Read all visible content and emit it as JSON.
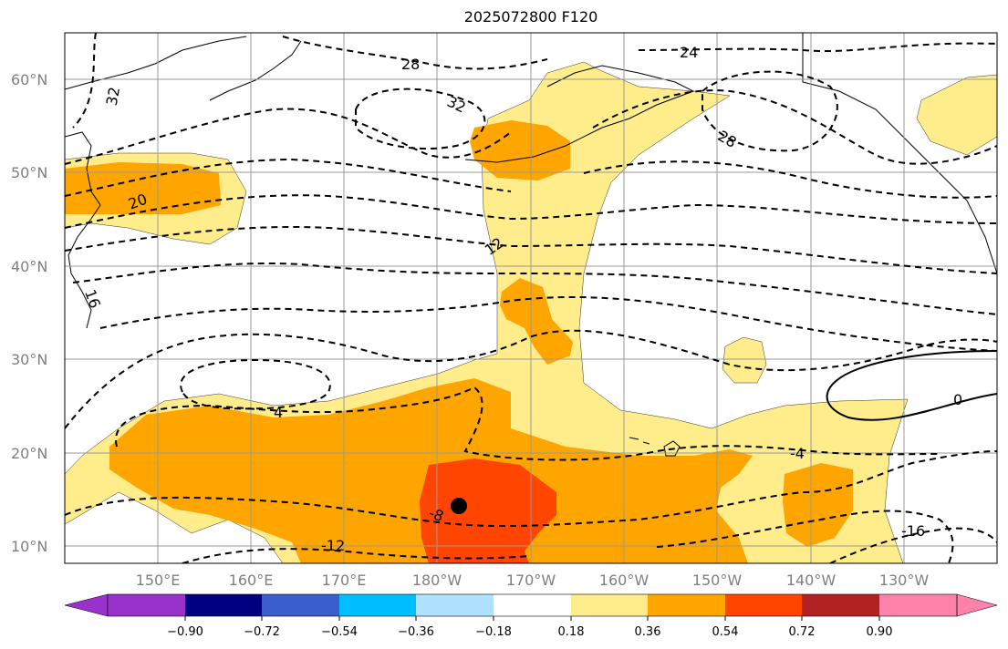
{
  "title": "2025072800 F120",
  "lat_labels": [
    "60°N",
    "50°N",
    "40°N",
    "30°N",
    "20°N",
    "10°N"
  ],
  "lon_labels": [
    "150°E",
    "160°E",
    "170°E",
    "180°W",
    "170°W",
    "160°W",
    "150°W",
    "140°W",
    "130°W"
  ],
  "contour_labels": [
    "28",
    "24",
    "32",
    "32",
    "28",
    "20",
    "12",
    "16",
    "4",
    "0",
    "-4",
    "-8",
    "-12",
    "-16"
  ],
  "colorbar": {
    "ticks": [
      "−0.90",
      "−0.72",
      "−0.54",
      "−0.36",
      "−0.18",
      "0.18",
      "0.36",
      "0.54",
      "0.72",
      "0.90"
    ],
    "colors": [
      "#9932cc",
      "#000080",
      "#3a5fcd",
      "#00bfff",
      "#b0e2ff",
      "#ffffff",
      "#ffec8b",
      "#ffa500",
      "#ff4500",
      "#b22222",
      "#ff82ab"
    ]
  },
  "fill_colors": {
    "light": "#ffec8b",
    "mid": "#ffa500",
    "high": "#ff4500"
  },
  "marker_color": "#000000"
}
